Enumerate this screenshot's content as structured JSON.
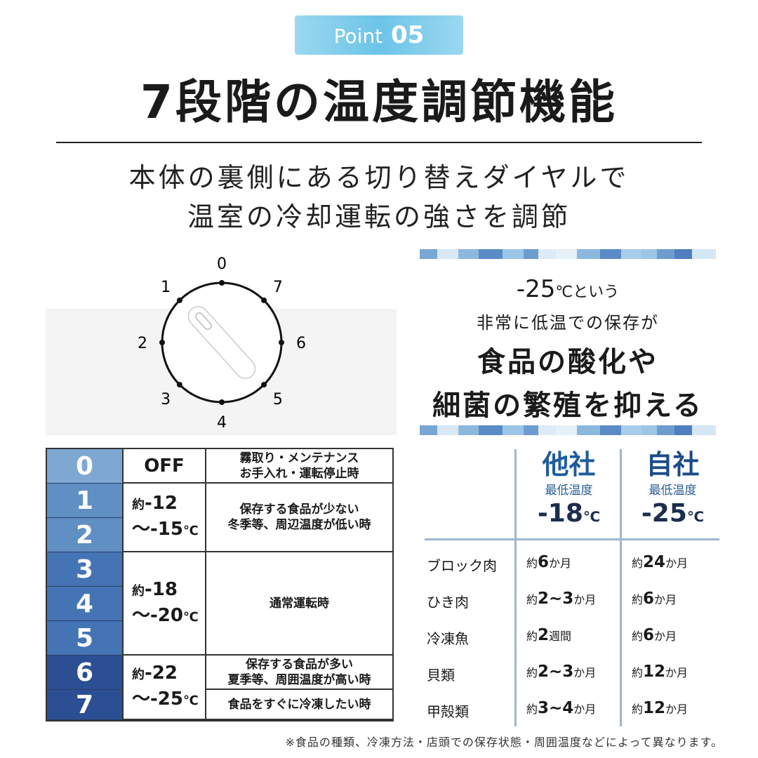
{
  "badge": {
    "prefix": "Point",
    "number": "05"
  },
  "title": "7段階の温度調節機能",
  "subtitle": [
    "本体の裏側にある切り替えダイヤルで",
    "温室の冷却運転の強さを調節"
  ],
  "dial": {
    "labels": [
      "0",
      "1",
      "2",
      "3",
      "4",
      "5",
      "6",
      "7"
    ]
  },
  "claim": {
    "temp": "-25",
    "unit": "℃という",
    "line2": "非常に低温での保存が",
    "line3": "食品の酸化や",
    "line4": "細菌の繁殖を抑える"
  },
  "settings": {
    "levels": [
      "0",
      "1",
      "2",
      "3",
      "4",
      "5",
      "6",
      "7"
    ],
    "level_colors": [
      "#7ea8d2",
      "#5f8fc3",
      "#5f8fc3",
      "#4474b4",
      "#4474b4",
      "#4474b4",
      "#2c4f93",
      "#2c4f93"
    ],
    "temps": [
      {
        "text": "OFF"
      },
      {
        "prefix": "約",
        "a": "-12",
        "b": "～-15",
        "unit": "℃"
      },
      {
        "prefix": "約",
        "a": "-18",
        "b": "～-20",
        "unit": "℃"
      },
      {
        "prefix": "約",
        "a": "-22",
        "b": "～-25",
        "unit": "℃"
      }
    ],
    "descriptions": [
      "霧取り・メンテナンス\nお手入れ・運転停止時",
      "保存する食品が少ない\n冬季等、周辺温度が低い時",
      "通常運転時",
      "保存する食品が多い\n夏季等、周囲温度が高い時",
      "食品をすぐに冷凍したい時"
    ]
  },
  "compare": {
    "columns": [
      {
        "name": "他社",
        "sub": "最低温度",
        "temp": "-18",
        "unit": "℃"
      },
      {
        "name": "自社",
        "sub": "最低温度",
        "temp": "-25",
        "unit": "℃"
      }
    ],
    "rows": [
      {
        "label": "ブロック肉",
        "other": {
          "p": "約",
          "v": "6",
          "u": "か月"
        },
        "ours": {
          "p": "約",
          "v": "24",
          "u": "か月"
        }
      },
      {
        "label": "ひき肉",
        "other": {
          "p": "約",
          "v": "2~3",
          "u": "か月"
        },
        "ours": {
          "p": "約",
          "v": "6",
          "u": "か月"
        }
      },
      {
        "label": "冷凍魚",
        "other": {
          "p": "約",
          "v": "2",
          "u": "週間"
        },
        "ours": {
          "p": "約",
          "v": "6",
          "u": "か月"
        }
      },
      {
        "label": "貝類",
        "other": {
          "p": "約",
          "v": "2~3",
          "u": "か月"
        },
        "ours": {
          "p": "約",
          "v": "12",
          "u": "か月"
        }
      },
      {
        "label": "甲殻類",
        "other": {
          "p": "約",
          "v": "3~4",
          "u": "か月"
        },
        "ours": {
          "p": "約",
          "v": "12",
          "u": "か月"
        }
      }
    ]
  },
  "note": "※食品の種類、冷凍方法・店頭での保存状態・周囲温度などによって異なります。",
  "colors": {
    "badge": "#6cc4e8",
    "accent": "#1f5c9e",
    "dark_navy": "#1c2d4e"
  }
}
